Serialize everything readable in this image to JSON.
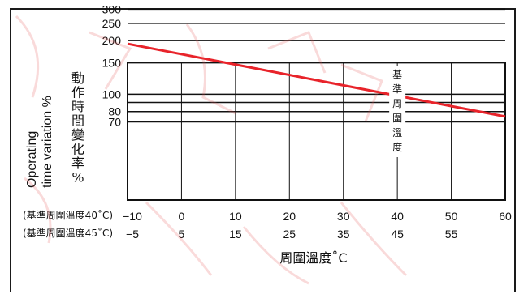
{
  "chart_data": {
    "type": "line",
    "title": "",
    "xlabel": "周圍溫度˚C",
    "ylabel_en_line1": "Operating",
    "ylabel_en_line2": "time variation %",
    "ylabel_zh": [
      "動",
      "作",
      "時",
      "間",
      "變",
      "化",
      "率",
      "%"
    ],
    "x_axis_rows": [
      {
        "label": "(基準周圍溫度40˚C)",
        "ticks": [
          "−10",
          "0",
          "10",
          "20",
          "30",
          "40",
          "50",
          "60"
        ]
      },
      {
        "label": "(基準周圍溫度45˚C)",
        "ticks": [
          "−5",
          "5",
          "15",
          "25",
          "35",
          "45",
          "55"
        ]
      }
    ],
    "xlim": [
      -10,
      60
    ],
    "x_tick_values": [
      -10,
      0,
      10,
      20,
      30,
      40,
      50,
      60
    ],
    "y_tick_labels": [
      "300",
      "250",
      "200",
      "150",
      "100",
      "80",
      "70"
    ],
    "y_tick_values": [
      300,
      250,
      200,
      150,
      100,
      80,
      70
    ],
    "y_gridlines": [
      350,
      300,
      250,
      200,
      150,
      100,
      90,
      80,
      70
    ],
    "y_scale": "log",
    "ylim": [
      60,
      400
    ],
    "grid": true,
    "series": [
      {
        "color": "#e8232a",
        "x": [
          -10,
          60
        ],
        "y": [
          192,
          75
        ]
      }
    ],
    "annotation_vertical": [
      "基",
      "準",
      "周",
      "圍",
      "溫",
      "度"
    ],
    "annotation_x": 40
  },
  "colors": {
    "frame": "#1a1a1a",
    "grid": "#111111",
    "series": "#e8232a",
    "watermark": "#f2a6a6"
  }
}
